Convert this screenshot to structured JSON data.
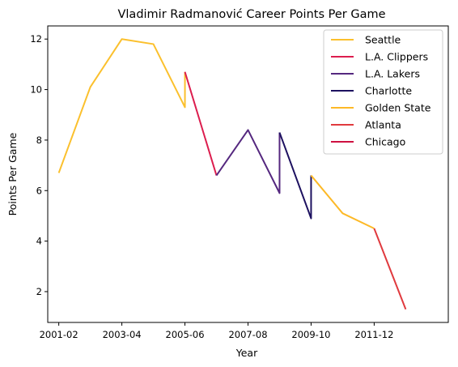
{
  "chart_data": {
    "type": "line",
    "title": "Vladimir Radmanović Career Points Per Game",
    "xlabel": "Year",
    "ylabel": "Points Per Game",
    "x_ticks": [
      "2001-02",
      "2003-04",
      "2005-06",
      "2007-08",
      "2009-10",
      "2011-12"
    ],
    "y_ticks": [
      2,
      4,
      6,
      8,
      10,
      12
    ],
    "xlim": [
      2000.65,
      2013.35
    ],
    "ylim": [
      0.78,
      12.52
    ],
    "grid": false,
    "legend_position": "top-right",
    "series": [
      {
        "name": "Seattle",
        "color": "#fbc02d",
        "points": [
          [
            2001,
            6.7
          ],
          [
            2002,
            10.1
          ],
          [
            2003,
            12.0
          ],
          [
            2004,
            11.8
          ],
          [
            2005,
            9.3
          ],
          [
            2005,
            10.7
          ]
        ]
      },
      {
        "name": "L.A. Clippers",
        "color": "#dc1d4e",
        "points": [
          [
            2005,
            10.7
          ],
          [
            2006,
            6.6
          ]
        ]
      },
      {
        "name": "L.A. Lakers",
        "color": "#55287f",
        "points": [
          [
            2006,
            6.6
          ],
          [
            2007,
            8.4
          ],
          [
            2008,
            5.9
          ],
          [
            2008,
            8.3
          ]
        ]
      },
      {
        "name": "Charlotte",
        "color": "#1d1160",
        "points": [
          [
            2008,
            8.3
          ],
          [
            2009,
            4.9
          ],
          [
            2009,
            6.6
          ]
        ]
      },
      {
        "name": "Golden State",
        "color": "#fdb927",
        "points": [
          [
            2009,
            6.6
          ],
          [
            2010,
            5.1
          ],
          [
            2011,
            4.5
          ]
        ]
      },
      {
        "name": "Atlanta",
        "color": "#e03a3e",
        "points": [
          [
            2011,
            4.5
          ],
          [
            2012,
            1.3
          ]
        ]
      },
      {
        "name": "Chicago",
        "color": "#ce1141",
        "points": []
      }
    ]
  }
}
